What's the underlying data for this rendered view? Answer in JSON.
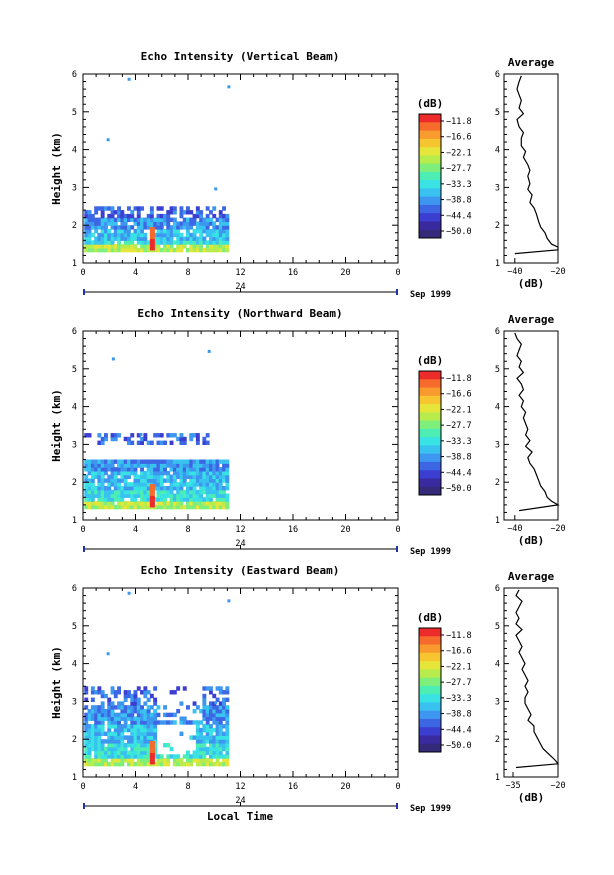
{
  "chart_data": [
    {
      "type": "heatmap",
      "title": "Echo Intensity (Vertical Beam)",
      "ylabel": "Height (km)",
      "xlabel": "",
      "ylim": [
        1,
        6
      ],
      "xlim": [
        0,
        24
      ],
      "y_ticks": [
        "1",
        "2",
        "3",
        "4",
        "5",
        "6"
      ],
      "x_ticks": [
        "0",
        "4",
        "8",
        "12",
        "16",
        "20",
        "0"
      ],
      "date_tick": "24",
      "date_label": "Sep 1999",
      "data_extent": {
        "x": [
          0,
          11
        ],
        "y": [
          1.3,
          2.5
        ]
      },
      "colorbar": {
        "label": "(dB)",
        "ticks": [
          "-11.8",
          "-16.6",
          "-22.1",
          "-27.7",
          "-33.3",
          "-38.8",
          "-44.4",
          "-50.0"
        ]
      },
      "profile": {
        "title": "Average",
        "xlabel": "(dB)",
        "x_ticks": [
          "-40",
          "-20"
        ],
        "xlim": [
          -45,
          -20
        ],
        "ylim": [
          1,
          6
        ],
        "points": [
          [
            -37,
            5.95
          ],
          [
            -38,
            5.8
          ],
          [
            -39,
            5.6
          ],
          [
            -38,
            5.45
          ],
          [
            -37,
            5.3
          ],
          [
            -38,
            5.1
          ],
          [
            -36,
            4.95
          ],
          [
            -39,
            4.8
          ],
          [
            -38,
            4.6
          ],
          [
            -36,
            4.45
          ],
          [
            -37,
            4.3
          ],
          [
            -37,
            4.1
          ],
          [
            -35,
            3.95
          ],
          [
            -36,
            3.8
          ],
          [
            -34,
            3.6
          ],
          [
            -33,
            3.45
          ],
          [
            -34,
            3.3
          ],
          [
            -33,
            3.1
          ],
          [
            -34,
            2.95
          ],
          [
            -32,
            2.8
          ],
          [
            -33,
            2.6
          ],
          [
            -31,
            2.45
          ],
          [
            -30,
            2.3
          ],
          [
            -29,
            2.1
          ],
          [
            -28,
            1.95
          ],
          [
            -26,
            1.8
          ],
          [
            -25,
            1.65
          ],
          [
            -23,
            1.5
          ],
          [
            -20,
            1.42
          ],
          [
            -20,
            1.35
          ],
          [
            -40,
            1.25
          ]
        ]
      }
    },
    {
      "type": "heatmap",
      "title": "Echo Intensity (Northward Beam)",
      "ylabel": "Height (km)",
      "xlabel": "",
      "ylim": [
        1,
        6
      ],
      "xlim": [
        0,
        24
      ],
      "y_ticks": [
        "1",
        "2",
        "3",
        "4",
        "5",
        "6"
      ],
      "x_ticks": [
        "0",
        "4",
        "8",
        "12",
        "16",
        "20",
        "0"
      ],
      "date_tick": "24",
      "date_label": "Sep 1999",
      "data_extent": {
        "x": [
          0,
          11
        ],
        "y": [
          1.3,
          3.3
        ]
      },
      "colorbar": {
        "label": "(dB)",
        "ticks": [
          "-11.8",
          "-16.6",
          "-22.1",
          "-27.7",
          "-33.3",
          "-38.8",
          "-44.4",
          "-50.0"
        ]
      },
      "profile": {
        "title": "Average",
        "xlabel": "(dB)",
        "x_ticks": [
          "-40",
          "-20"
        ],
        "xlim": [
          -45,
          -20
        ],
        "ylim": [
          1,
          6
        ],
        "points": [
          [
            -40,
            5.95
          ],
          [
            -39,
            5.8
          ],
          [
            -37,
            5.65
          ],
          [
            -38,
            5.5
          ],
          [
            -39,
            5.35
          ],
          [
            -37,
            5.2
          ],
          [
            -38,
            5.05
          ],
          [
            -36,
            4.9
          ],
          [
            -39,
            4.75
          ],
          [
            -37,
            4.6
          ],
          [
            -36,
            4.45
          ],
          [
            -38,
            4.3
          ],
          [
            -36,
            4.15
          ],
          [
            -37,
            4.0
          ],
          [
            -35,
            3.85
          ],
          [
            -36,
            3.7
          ],
          [
            -35,
            3.55
          ],
          [
            -34,
            3.4
          ],
          [
            -35,
            3.25
          ],
          [
            -33,
            3.1
          ],
          [
            -35,
            2.95
          ],
          [
            -32,
            2.8
          ],
          [
            -34,
            2.65
          ],
          [
            -33,
            2.5
          ],
          [
            -31,
            2.35
          ],
          [
            -30,
            2.2
          ],
          [
            -29,
            2.05
          ],
          [
            -28,
            1.9
          ],
          [
            -26,
            1.75
          ],
          [
            -25,
            1.6
          ],
          [
            -23,
            1.5
          ],
          [
            -20,
            1.4
          ],
          [
            -38,
            1.25
          ]
        ]
      }
    },
    {
      "type": "heatmap",
      "title": "Echo Intensity (Eastward Beam)",
      "ylabel": "Height (km)",
      "xlabel": "Local Time",
      "ylim": [
        1,
        6
      ],
      "xlim": [
        0,
        24
      ],
      "y_ticks": [
        "1",
        "2",
        "3",
        "4",
        "5",
        "6"
      ],
      "x_ticks": [
        "0",
        "4",
        "8",
        "12",
        "16",
        "20",
        "0"
      ],
      "date_tick": "24",
      "date_label": "Sep 1999",
      "data_extent": {
        "x": [
          0,
          11
        ],
        "y": [
          1.3,
          3.4
        ]
      },
      "colorbar": {
        "label": "(dB)",
        "ticks": [
          "-11.8",
          "-16.6",
          "-22.1",
          "-27.7",
          "-33.3",
          "-38.8",
          "-44.4",
          "-50.0"
        ]
      },
      "profile": {
        "title": "Average",
        "xlabel": "(dB)",
        "x_ticks": [
          "-35",
          "-20"
        ],
        "xlim": [
          -38,
          -20
        ],
        "ylim": [
          1,
          6
        ],
        "points": [
          [
            -33,
            5.95
          ],
          [
            -34,
            5.8
          ],
          [
            -32,
            5.65
          ],
          [
            -33,
            5.5
          ],
          [
            -34,
            5.35
          ],
          [
            -33,
            5.2
          ],
          [
            -34,
            5.05
          ],
          [
            -32,
            4.9
          ],
          [
            -34,
            4.75
          ],
          [
            -33,
            4.6
          ],
          [
            -32,
            4.45
          ],
          [
            -33,
            4.3
          ],
          [
            -32,
            4.15
          ],
          [
            -31,
            4.0
          ],
          [
            -32,
            3.85
          ],
          [
            -31,
            3.7
          ],
          [
            -30,
            3.55
          ],
          [
            -31,
            3.4
          ],
          [
            -30,
            3.25
          ],
          [
            -31,
            3.1
          ],
          [
            -31,
            2.95
          ],
          [
            -30,
            2.8
          ],
          [
            -29,
            2.65
          ],
          [
            -30,
            2.5
          ],
          [
            -28,
            2.35
          ],
          [
            -28,
            2.2
          ],
          [
            -27,
            2.05
          ],
          [
            -26,
            1.9
          ],
          [
            -25,
            1.75
          ],
          [
            -23,
            1.6
          ],
          [
            -21,
            1.45
          ],
          [
            -20,
            1.35
          ],
          [
            -34,
            1.25
          ]
        ]
      }
    }
  ]
}
